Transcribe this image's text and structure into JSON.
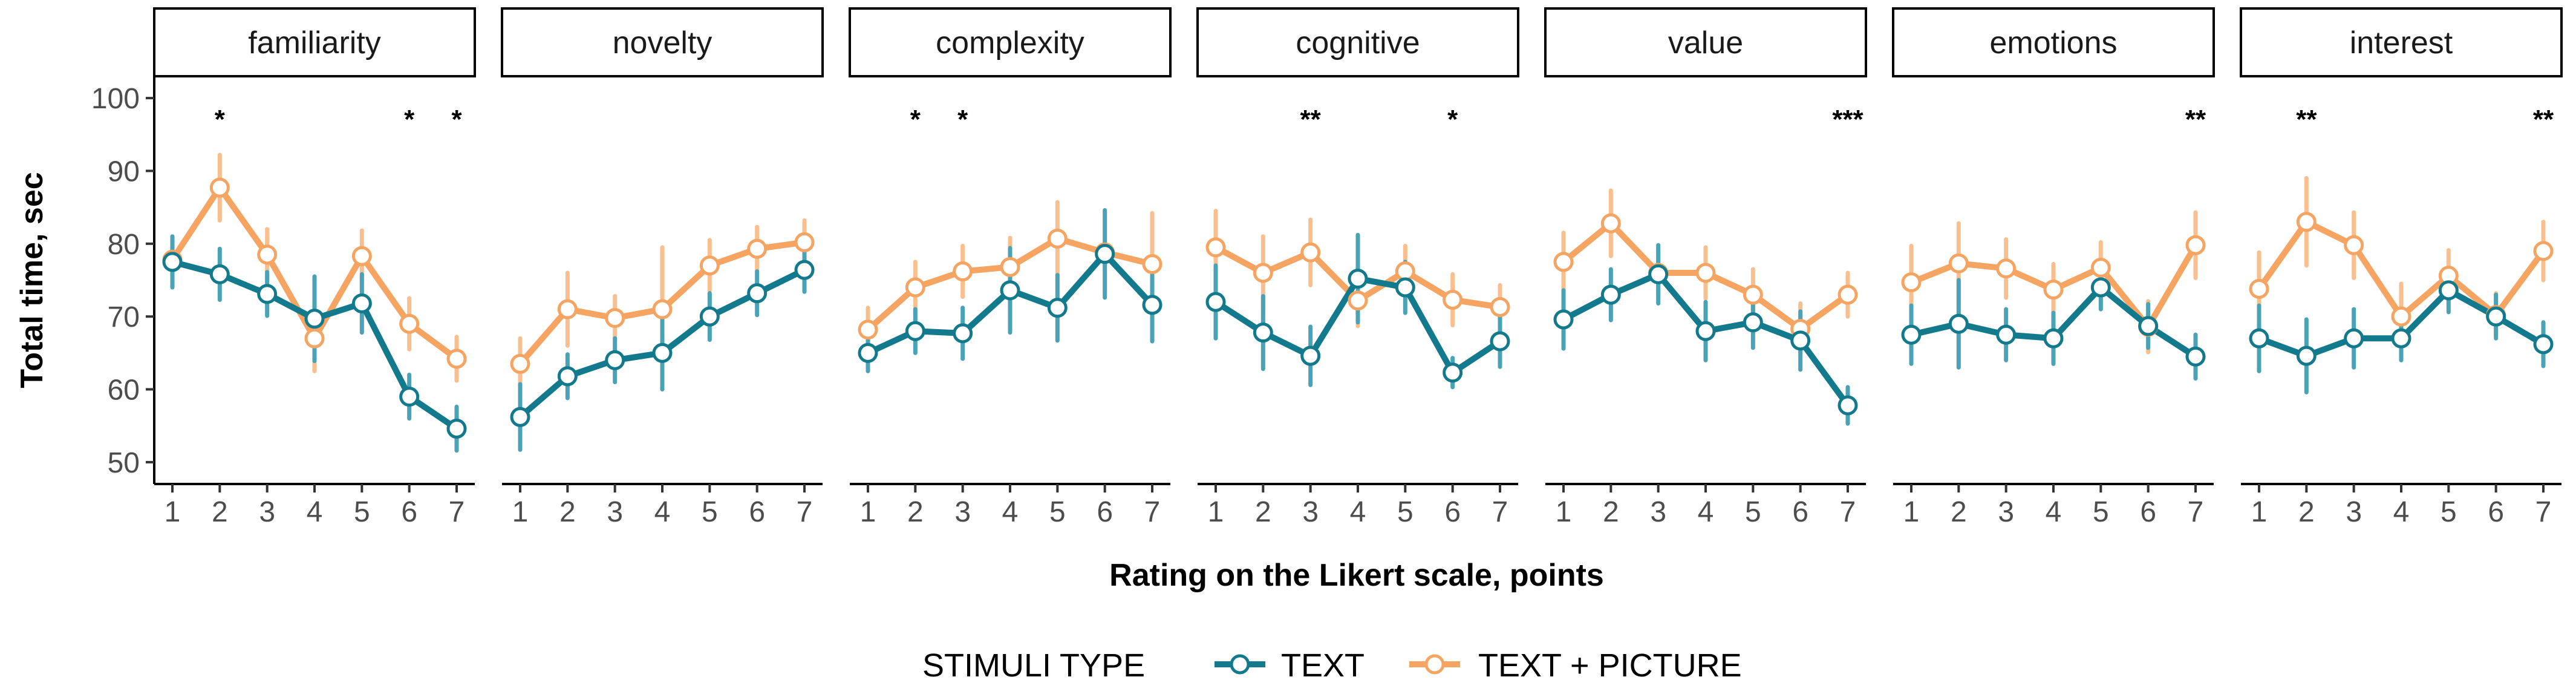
{
  "chart_data": {
    "type": "line",
    "facet_by": "rating_scale",
    "panels": [
      "familiarity",
      "novelty",
      "complexity",
      "cognitive",
      "value",
      "emotions",
      "interest"
    ],
    "x": [
      1,
      2,
      3,
      4,
      5,
      6,
      7
    ],
    "x_tick_labels": [
      "1",
      "2",
      "3",
      "4",
      "5",
      "6",
      "7"
    ],
    "xlabel": "Rating on the Likert scale, points",
    "ylabel": "Total time, sec",
    "ylim": [
      47,
      103
    ],
    "yticks": [
      50,
      60,
      70,
      80,
      90,
      100
    ],
    "grid": false,
    "legend": {
      "title": "STIMULI TYPE",
      "position": "bottom",
      "entries": [
        "TEXT",
        "TEXT + PICTURE"
      ]
    },
    "colors": {
      "TEXT": "#127a8c",
      "TEXT + PICTURE": "#f6a462",
      "text_error": "#4aa2b6",
      "picture_error": "#f9bf8f"
    },
    "series": [
      {
        "name": "TEXT",
        "values": {
          "familiarity": [
            77.5,
            75.8,
            73.1,
            69.7,
            71.8,
            59.0,
            54.6
          ],
          "novelty": [
            56.2,
            61.8,
            64.0,
            65.0,
            70.0,
            73.2,
            76.4
          ],
          "complexity": [
            65.0,
            68.0,
            67.7,
            73.6,
            71.2,
            78.6,
            71.6
          ],
          "cognitive": [
            72.0,
            67.8,
            64.6,
            75.2,
            74.0,
            62.3,
            66.6
          ],
          "value": [
            69.6,
            73.0,
            75.8,
            68.0,
            69.2,
            66.7,
            57.8
          ],
          "emotions": [
            67.5,
            69.0,
            67.5,
            67.0,
            74.0,
            68.7,
            64.5
          ],
          "interest": [
            67.0,
            64.6,
            67.0,
            67.0,
            73.6,
            70.0,
            66.2
          ]
        },
        "error": {
          "familiarity": [
            3.5,
            3.5,
            3.0,
            5.8,
            4.0,
            3.0,
            3.0
          ],
          "novelty": [
            4.5,
            3.0,
            3.0,
            5.0,
            3.2,
            3.0,
            3.0
          ],
          "complexity": [
            2.5,
            3.0,
            3.5,
            5.8,
            4.5,
            6.0,
            5.0
          ],
          "cognitive": [
            5.0,
            5.0,
            4.0,
            6.0,
            3.5,
            2.0,
            3.5
          ],
          "value": [
            4.0,
            3.5,
            4.0,
            4.0,
            3.5,
            4.0,
            2.5
          ],
          "emotions": [
            4.0,
            6.0,
            3.5,
            3.5,
            3.0,
            3.0,
            3.0
          ],
          "interest": [
            4.5,
            5.0,
            4.0,
            3.0,
            3.0,
            3.0,
            3.0
          ]
        }
      },
      {
        "name": "TEXT + PICTURE",
        "values": {
          "familiarity": [
            77.8,
            87.7,
            78.5,
            67.0,
            78.3,
            69.0,
            64.2
          ],
          "novelty": [
            63.5,
            71.0,
            69.8,
            71.0,
            77.0,
            79.3,
            80.2
          ],
          "complexity": [
            68.2,
            74.0,
            76.2,
            76.8,
            80.7,
            78.8,
            77.2
          ],
          "cognitive": [
            79.5,
            76.0,
            78.8,
            72.2,
            76.2,
            72.3,
            71.3
          ],
          "value": [
            77.5,
            82.8,
            76.0,
            76.0,
            73.0,
            68.3,
            73.0
          ],
          "emotions": [
            74.7,
            77.3,
            76.6,
            73.7,
            76.7,
            68.6,
            79.8
          ],
          "interest": [
            73.8,
            83.0,
            79.8,
            70.0,
            75.6,
            70.2,
            79.0
          ]
        },
        "error": {
          "familiarity": [
            3.0,
            4.5,
            3.5,
            4.5,
            3.5,
            3.5,
            3.0
          ],
          "novelty": [
            3.5,
            5.0,
            3.0,
            8.5,
            3.5,
            3.0,
            3.0
          ],
          "complexity": [
            3.0,
            3.5,
            3.5,
            4.0,
            5.0,
            5.5,
            7.0
          ],
          "cognitive": [
            5.0,
            5.0,
            4.5,
            3.5,
            3.5,
            3.5,
            3.0
          ],
          "value": [
            4.0,
            4.5,
            3.5,
            3.5,
            3.5,
            3.5,
            3.0
          ],
          "emotions": [
            5.0,
            5.5,
            4.0,
            3.5,
            3.5,
            3.5,
            4.5
          ],
          "interest": [
            5.0,
            6.0,
            4.5,
            4.5,
            3.5,
            3.0,
            4.0
          ]
        }
      }
    ],
    "significance": {
      "familiarity": [
        {
          "x": 2,
          "label": "*"
        },
        {
          "x": 6,
          "label": "*"
        },
        {
          "x": 7,
          "label": "*"
        }
      ],
      "novelty": [],
      "complexity": [
        {
          "x": 2,
          "label": "*"
        },
        {
          "x": 3,
          "label": "*"
        }
      ],
      "cognitive": [
        {
          "x": 3,
          "label": "**"
        },
        {
          "x": 6,
          "label": "*"
        }
      ],
      "value": [
        {
          "x": 7,
          "label": "***"
        }
      ],
      "emotions": [
        {
          "x": 7,
          "label": "**"
        }
      ],
      "interest": [
        {
          "x": 2,
          "label": "**"
        },
        {
          "x": 7,
          "label": "**"
        }
      ]
    }
  }
}
